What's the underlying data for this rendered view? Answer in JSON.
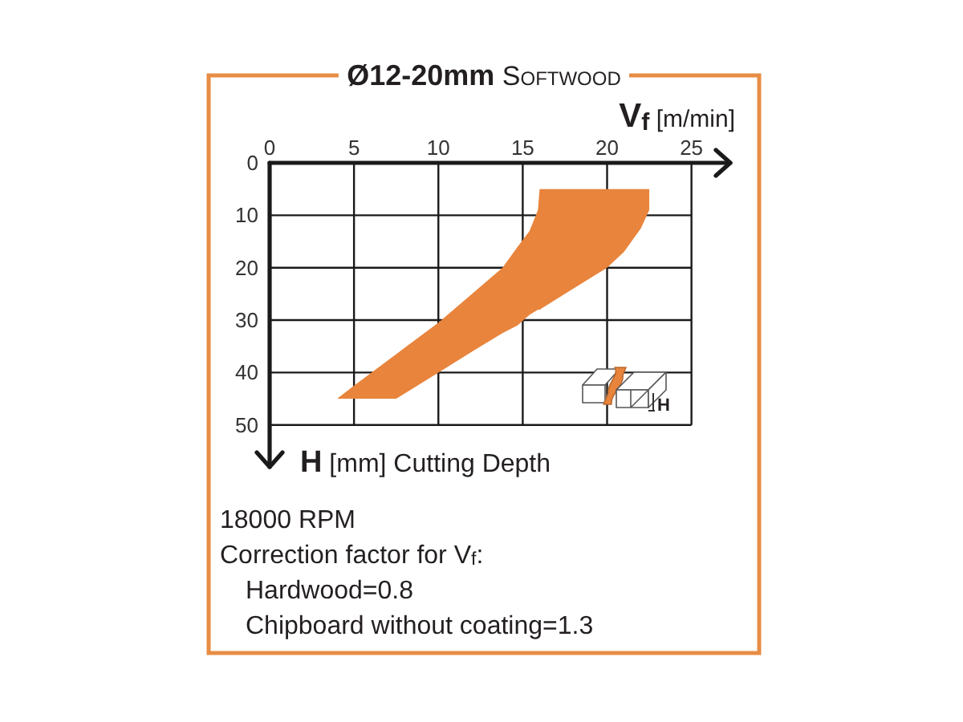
{
  "chart_data": {
    "type": "area",
    "title": "Ø12-20mm Softwood",
    "xlabel": "V$_{f}$ [m/min]",
    "ylabel": "H [mm] Cutting Depth",
    "xlim": [
      0,
      27.3
    ],
    "ylim": [
      58,
      0
    ],
    "xticks": [
      0,
      5,
      10,
      15,
      20,
      25
    ],
    "yticks": [
      0,
      10,
      20,
      30,
      40,
      50
    ],
    "grid": true,
    "series": [
      {
        "color": "#e8843c",
        "x": [
          4,
          5,
          7.5,
          10,
          12,
          13.8,
          14.7,
          15.4,
          15.9,
          16,
          18,
          20,
          21,
          22,
          22.5
        ],
        "values": [
          null,
          null,
          null,
          null,
          null,
          null,
          null,
          null,
          null,
          null,
          null,
          null,
          null,
          null,
          null
        ],
        "lower": [
          45,
          42.5,
          36.5,
          30.5,
          25,
          20,
          16,
          13,
          9,
          5,
          5,
          5,
          5,
          5,
          5
        ],
        "upper": [
          45,
          45,
          45,
          40,
          36,
          32.5,
          31,
          29,
          28,
          28,
          24,
          20,
          17,
          12.5,
          9
        ]
      }
    ],
    "annotations": [
      "H",
      "18000 RPM",
      "Correction factor for V$_{f}$:",
      "  Hardwood=0.8",
      "  Chipboard without coating=1.3"
    ]
  }
}
